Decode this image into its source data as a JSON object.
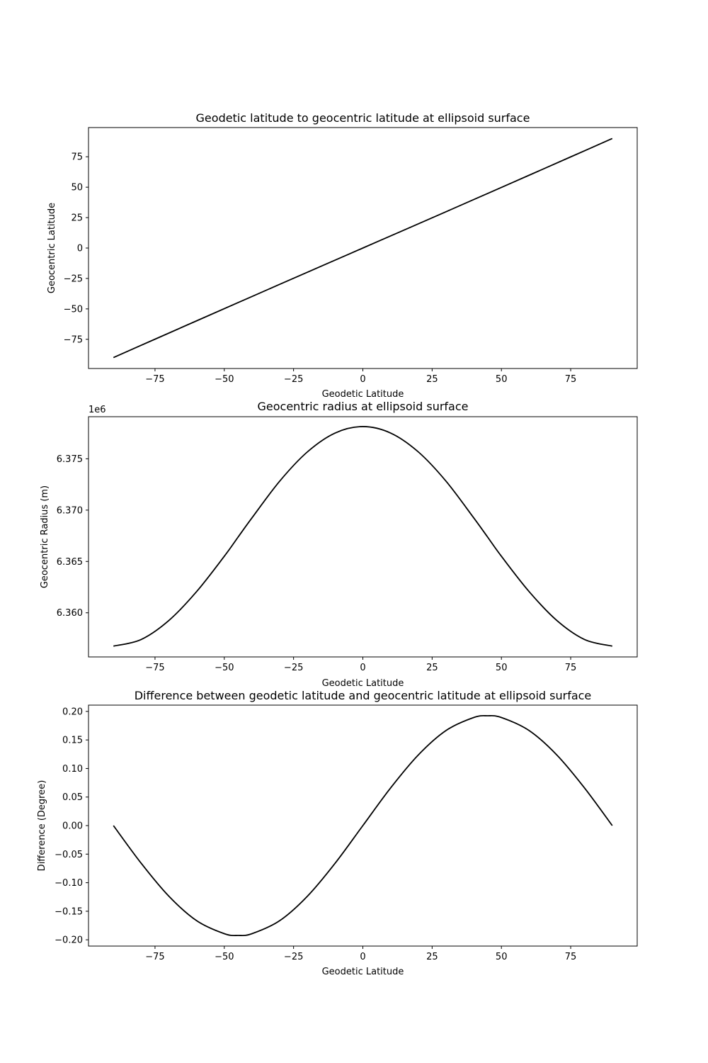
{
  "chart_data": [
    {
      "type": "line",
      "title": "Geodetic latitude to geocentric latitude at ellipsoid surface",
      "xlabel": "Geodetic Latitude",
      "ylabel": "Geocentric Latitude",
      "xlim": [
        -99,
        99
      ],
      "ylim": [
        -99,
        99
      ],
      "xticks": [
        -75,
        -50,
        -25,
        0,
        25,
        50,
        75
      ],
      "xtick_labels": [
        "−75",
        "−50",
        "−25",
        "0",
        "25",
        "50",
        "75"
      ],
      "yticks": [
        -75,
        -50,
        -25,
        0,
        25,
        50,
        75
      ],
      "ytick_labels": [
        "−75",
        "−50",
        "−25",
        "0",
        "25",
        "50",
        "75"
      ],
      "y_offset_label": "",
      "grid": false,
      "line_color": "#000000",
      "x": [
        -90,
        -75,
        -60,
        -45,
        -30,
        -15,
        0,
        15,
        30,
        45,
        60,
        75,
        90
      ],
      "y": [
        -90,
        -74.9,
        -59.83,
        -44.81,
        -29.83,
        -14.9,
        0,
        14.9,
        29.83,
        44.81,
        59.83,
        74.9,
        90
      ]
    },
    {
      "type": "line",
      "title": "Geocentric radius at ellipsoid surface",
      "xlabel": "Geodetic Latitude",
      "ylabel": "Geocentric Radius (m)",
      "xlim": [
        -99,
        99
      ],
      "ylim": [
        6355700,
        6379100
      ],
      "xticks": [
        -75,
        -50,
        -25,
        0,
        25,
        50,
        75
      ],
      "xtick_labels": [
        "−75",
        "−50",
        "−25",
        "0",
        "25",
        "50",
        "75"
      ],
      "yticks": [
        6360000,
        6365000,
        6370000,
        6375000
      ],
      "ytick_labels": [
        "6.360",
        "6.365",
        "6.370",
        "6.375"
      ],
      "y_offset_label": "1e6",
      "grid": false,
      "line_color": "#000000",
      "x": [
        -90,
        -80,
        -70,
        -60,
        -50,
        -45,
        -40,
        -30,
        -20,
        -10,
        0,
        10,
        20,
        30,
        40,
        45,
        50,
        60,
        70,
        80,
        90
      ],
      "y": [
        6356752,
        6357398,
        6359251,
        6362064,
        6365505,
        6367382,
        6369250,
        6372824,
        6375674,
        6377512,
        6378137,
        6377512,
        6375674,
        6372824,
        6369250,
        6367382,
        6365505,
        6362064,
        6359251,
        6357398,
        6356752
      ]
    },
    {
      "type": "line",
      "title": "Difference between geodetic latitude and geocentric latitude at ellipsoid surface",
      "xlabel": "Geodetic Latitude",
      "ylabel": "Difference (Degree)",
      "xlim": [
        -99,
        99
      ],
      "ylim": [
        -0.211,
        0.211
      ],
      "xticks": [
        -75,
        -50,
        -25,
        0,
        25,
        50,
        75
      ],
      "xtick_labels": [
        "−75",
        "−50",
        "−25",
        "0",
        "25",
        "50",
        "75"
      ],
      "yticks": [
        -0.2,
        -0.15,
        -0.1,
        -0.05,
        0.0,
        0.05,
        0.1,
        0.15,
        0.2
      ],
      "ytick_labels": [
        "−0.20",
        "−0.15",
        "−0.10",
        "−0.05",
        "0.00",
        "0.05",
        "0.10",
        "0.15",
        "0.20"
      ],
      "y_offset_label": "",
      "grid": false,
      "line_color": "#000000",
      "x": [
        -90,
        -80,
        -70,
        -60,
        -50,
        -45,
        -40,
        -30,
        -20,
        -10,
        0,
        10,
        20,
        30,
        40,
        45,
        50,
        60,
        70,
        80,
        90
      ],
      "y": [
        0,
        -0.0659,
        -0.1237,
        -0.1665,
        -0.1893,
        -0.1924,
        -0.1893,
        -0.1665,
        -0.1237,
        -0.0659,
        0,
        0.0659,
        0.1237,
        0.1665,
        0.1893,
        0.1924,
        0.1893,
        0.1665,
        0.1237,
        0.0659,
        0
      ]
    }
  ]
}
